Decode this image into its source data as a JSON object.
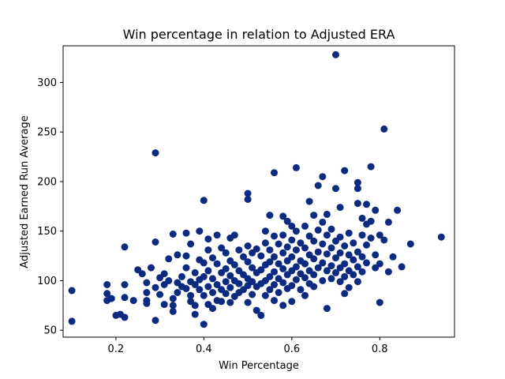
{
  "chart_data": {
    "type": "scatter",
    "title": "Win percentage in relation to Adjusted ERA",
    "xlabel": "Win Percentage",
    "ylabel": "Adjusted Earned Run Average",
    "xlim": [
      0.08,
      0.97
    ],
    "ylim": [
      43,
      337
    ],
    "xticks": [
      0.2,
      0.4,
      0.6,
      0.8
    ],
    "xtick_labels": [
      "0.2",
      "0.4",
      "0.6",
      "0.8"
    ],
    "yticks": [
      50,
      100,
      150,
      200,
      250,
      300
    ],
    "ytick_labels": [
      "50",
      "100",
      "150",
      "200",
      "250",
      "300"
    ],
    "grid": false,
    "marker_color": "#0b2a80",
    "series": [
      {
        "points": [
          [
            0.1,
            90
          ],
          [
            0.1,
            59
          ],
          [
            0.18,
            96
          ],
          [
            0.18,
            87
          ],
          [
            0.18,
            80
          ],
          [
            0.19,
            82
          ],
          [
            0.2,
            65
          ],
          [
            0.21,
            66
          ],
          [
            0.22,
            63
          ],
          [
            0.22,
            134
          ],
          [
            0.22,
            96
          ],
          [
            0.22,
            83
          ],
          [
            0.24,
            80
          ],
          [
            0.25,
            111
          ],
          [
            0.26,
            107
          ],
          [
            0.27,
            98
          ],
          [
            0.27,
            88
          ],
          [
            0.27,
            80
          ],
          [
            0.27,
            77
          ],
          [
            0.28,
            113
          ],
          [
            0.29,
            229
          ],
          [
            0.29,
            60
          ],
          [
            0.29,
            139
          ],
          [
            0.29,
            93
          ],
          [
            0.3,
            103
          ],
          [
            0.3,
            86
          ],
          [
            0.31,
            96
          ],
          [
            0.31,
            76
          ],
          [
            0.31,
            107
          ],
          [
            0.32,
            122
          ],
          [
            0.32,
            100
          ],
          [
            0.33,
            147
          ],
          [
            0.33,
            82
          ],
          [
            0.33,
            75
          ],
          [
            0.33,
            69
          ],
          [
            0.34,
            126
          ],
          [
            0.34,
            98
          ],
          [
            0.34,
            88
          ],
          [
            0.35,
            104
          ],
          [
            0.35,
            94
          ],
          [
            0.36,
            148
          ],
          [
            0.36,
            125
          ],
          [
            0.36,
            113
          ],
          [
            0.36,
            92
          ],
          [
            0.37,
            137
          ],
          [
            0.37,
            99
          ],
          [
            0.37,
            85
          ],
          [
            0.37,
            79
          ],
          [
            0.38,
            108
          ],
          [
            0.38,
            96
          ],
          [
            0.38,
            75
          ],
          [
            0.38,
            66
          ],
          [
            0.39,
            150
          ],
          [
            0.39,
            121
          ],
          [
            0.39,
            101
          ],
          [
            0.39,
            91
          ],
          [
            0.4,
            181
          ],
          [
            0.4,
            56
          ],
          [
            0.4,
            118
          ],
          [
            0.4,
            104
          ],
          [
            0.4,
            85
          ],
          [
            0.41,
            142
          ],
          [
            0.41,
            131
          ],
          [
            0.41,
            110
          ],
          [
            0.41,
            94
          ],
          [
            0.41,
            76
          ],
          [
            0.42,
            123
          ],
          [
            0.42,
            102
          ],
          [
            0.42,
            88
          ],
          [
            0.42,
            72
          ],
          [
            0.43,
            146
          ],
          [
            0.43,
            117
          ],
          [
            0.43,
            96
          ],
          [
            0.43,
            80
          ],
          [
            0.44,
            133
          ],
          [
            0.44,
            108
          ],
          [
            0.44,
            91
          ],
          [
            0.44,
            79
          ],
          [
            0.45,
            128
          ],
          [
            0.45,
            112
          ],
          [
            0.45,
            99
          ],
          [
            0.45,
            87
          ],
          [
            0.46,
            143
          ],
          [
            0.46,
            120
          ],
          [
            0.46,
            105
          ],
          [
            0.46,
            93
          ],
          [
            0.46,
            78
          ],
          [
            0.47,
            146
          ],
          [
            0.47,
            116
          ],
          [
            0.47,
            100
          ],
          [
            0.47,
            84
          ],
          [
            0.48,
            131
          ],
          [
            0.48,
            110
          ],
          [
            0.48,
            97
          ],
          [
            0.48,
            88
          ],
          [
            0.49,
            124
          ],
          [
            0.49,
            106
          ],
          [
            0.49,
            91
          ],
          [
            0.5,
            188
          ],
          [
            0.5,
            182
          ],
          [
            0.5,
            135
          ],
          [
            0.5,
            119
          ],
          [
            0.5,
            102
          ],
          [
            0.5,
            95
          ],
          [
            0.5,
            78
          ],
          [
            0.51,
            128
          ],
          [
            0.51,
            113
          ],
          [
            0.51,
            99
          ],
          [
            0.51,
            86
          ],
          [
            0.52,
            132
          ],
          [
            0.52,
            108
          ],
          [
            0.52,
            94
          ],
          [
            0.52,
            70
          ],
          [
            0.53,
            125
          ],
          [
            0.53,
            111
          ],
          [
            0.53,
            97
          ],
          [
            0.53,
            65
          ],
          [
            0.54,
            150
          ],
          [
            0.54,
            138
          ],
          [
            0.54,
            116
          ],
          [
            0.54,
            100
          ],
          [
            0.54,
            85
          ],
          [
            0.55,
            166
          ],
          [
            0.55,
            131
          ],
          [
            0.55,
            119
          ],
          [
            0.55,
            104
          ],
          [
            0.55,
            91
          ],
          [
            0.56,
            209
          ],
          [
            0.56,
            145
          ],
          [
            0.56,
            124
          ],
          [
            0.56,
            109
          ],
          [
            0.56,
            96
          ],
          [
            0.56,
            80
          ],
          [
            0.57,
            137
          ],
          [
            0.57,
            117
          ],
          [
            0.57,
            102
          ],
          [
            0.57,
            88
          ],
          [
            0.58,
            165
          ],
          [
            0.58,
            146
          ],
          [
            0.58,
            128
          ],
          [
            0.58,
            112
          ],
          [
            0.58,
            98
          ],
          [
            0.58,
            75
          ],
          [
            0.59,
            160
          ],
          [
            0.59,
            134
          ],
          [
            0.59,
            120
          ],
          [
            0.59,
            106
          ],
          [
            0.59,
            92
          ],
          [
            0.6,
            155
          ],
          [
            0.6,
            141
          ],
          [
            0.6,
            124
          ],
          [
            0.6,
            110
          ],
          [
            0.6,
            95
          ],
          [
            0.6,
            79
          ],
          [
            0.61,
            214
          ],
          [
            0.61,
            150
          ],
          [
            0.61,
            131
          ],
          [
            0.61,
            114
          ],
          [
            0.61,
            101
          ],
          [
            0.62,
            138
          ],
          [
            0.62,
            120
          ],
          [
            0.62,
            107
          ],
          [
            0.62,
            91
          ],
          [
            0.63,
            155
          ],
          [
            0.63,
            133
          ],
          [
            0.63,
            117
          ],
          [
            0.63,
            103
          ],
          [
            0.63,
            85
          ],
          [
            0.64,
            180
          ],
          [
            0.64,
            145
          ],
          [
            0.64,
            126
          ],
          [
            0.64,
            110
          ],
          [
            0.64,
            97
          ],
          [
            0.65,
            166
          ],
          [
            0.65,
            140
          ],
          [
            0.65,
            122
          ],
          [
            0.65,
            106
          ],
          [
            0.65,
            94
          ],
          [
            0.66,
            196
          ],
          [
            0.66,
            151
          ],
          [
            0.66,
            129
          ],
          [
            0.66,
            113
          ],
          [
            0.67,
            205
          ],
          [
            0.67,
            159
          ],
          [
            0.67,
            137
          ],
          [
            0.67,
            118
          ],
          [
            0.67,
            100
          ],
          [
            0.68,
            167
          ],
          [
            0.68,
            146
          ],
          [
            0.68,
            127
          ],
          [
            0.68,
            110
          ],
          [
            0.68,
            72
          ],
          [
            0.69,
            152
          ],
          [
            0.69,
            133
          ],
          [
            0.69,
            115
          ],
          [
            0.69,
            102
          ],
          [
            0.7,
            328
          ],
          [
            0.7,
            193
          ],
          [
            0.7,
            140
          ],
          [
            0.7,
            123
          ],
          [
            0.7,
            108
          ],
          [
            0.71,
            174
          ],
          [
            0.71,
            144
          ],
          [
            0.71,
            128
          ],
          [
            0.71,
            113
          ],
          [
            0.71,
            99
          ],
          [
            0.72,
            211
          ],
          [
            0.72,
            135
          ],
          [
            0.72,
            117
          ],
          [
            0.72,
            104
          ],
          [
            0.72,
            87
          ],
          [
            0.73,
            148
          ],
          [
            0.73,
            126
          ],
          [
            0.73,
            110
          ],
          [
            0.73,
            93
          ],
          [
            0.74,
            138
          ],
          [
            0.74,
            121
          ],
          [
            0.74,
            106
          ],
          [
            0.75,
            199
          ],
          [
            0.75,
            193
          ],
          [
            0.75,
            178
          ],
          [
            0.75,
            129
          ],
          [
            0.75,
            114
          ],
          [
            0.75,
            99
          ],
          [
            0.76,
            163
          ],
          [
            0.76,
            146
          ],
          [
            0.76,
            124
          ],
          [
            0.76,
            109
          ],
          [
            0.77,
            177
          ],
          [
            0.77,
            157
          ],
          [
            0.77,
            136
          ],
          [
            0.77,
            118
          ],
          [
            0.78,
            215
          ],
          [
            0.78,
            160
          ],
          [
            0.78,
            143
          ],
          [
            0.79,
            171
          ],
          [
            0.79,
            126
          ],
          [
            0.79,
            113
          ],
          [
            0.8,
            78
          ],
          [
            0.8,
            146
          ],
          [
            0.8,
            117
          ],
          [
            0.81,
            253
          ],
          [
            0.81,
            141
          ],
          [
            0.82,
            109
          ],
          [
            0.82,
            159
          ],
          [
            0.83,
            124
          ],
          [
            0.84,
            171
          ],
          [
            0.85,
            114
          ],
          [
            0.87,
            137
          ],
          [
            0.94,
            144
          ]
        ]
      }
    ]
  }
}
